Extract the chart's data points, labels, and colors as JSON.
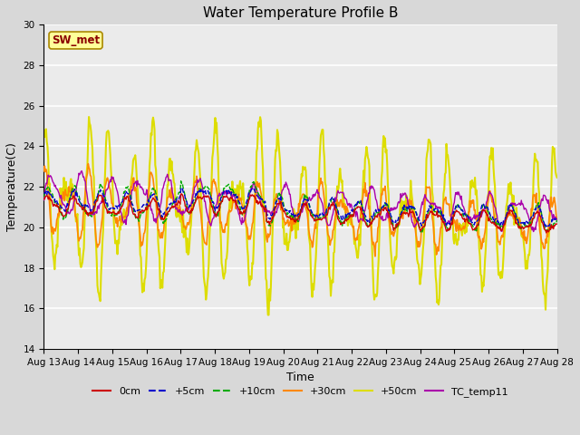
{
  "title": "Water Temperature Profile B",
  "xlabel": "Time",
  "ylabel": "Temperature(C)",
  "ylim": [
    14,
    30
  ],
  "yticks": [
    14,
    16,
    18,
    20,
    22,
    24,
    26,
    28,
    30
  ],
  "xtick_labels": [
    "Aug 13",
    "Aug 14",
    "Aug 15",
    "Aug 16",
    "Aug 17",
    "Aug 18",
    "Aug 19",
    "Aug 20",
    "Aug 21",
    "Aug 22",
    "Aug 23",
    "Aug 24",
    "Aug 25",
    "Aug 26",
    "Aug 27",
    "Aug 28"
  ],
  "annotation_text": "SW_met",
  "annotation_color": "#8B0000",
  "annotation_bg": "#FFFF99",
  "lines": {
    "0cm": {
      "color": "#CC0000",
      "lw": 1.0,
      "ls": "-"
    },
    "+5cm": {
      "color": "#0000CC",
      "lw": 1.0,
      "ls": "--"
    },
    "+10cm": {
      "color": "#00AA00",
      "lw": 1.0,
      "ls": "--"
    },
    "+30cm": {
      "color": "#FF8800",
      "lw": 1.2,
      "ls": "-"
    },
    "+50cm": {
      "color": "#DDDD00",
      "lw": 1.5,
      "ls": "-"
    },
    "TC_temp11": {
      "color": "#AA00AA",
      "lw": 1.0,
      "ls": "-"
    }
  },
  "background_color": "#EBEBEB",
  "grid_color": "#FFFFFF",
  "title_fontsize": 11,
  "axis_fontsize": 9,
  "tick_fontsize": 7.5,
  "figsize": [
    6.4,
    4.8
  ],
  "dpi": 100
}
